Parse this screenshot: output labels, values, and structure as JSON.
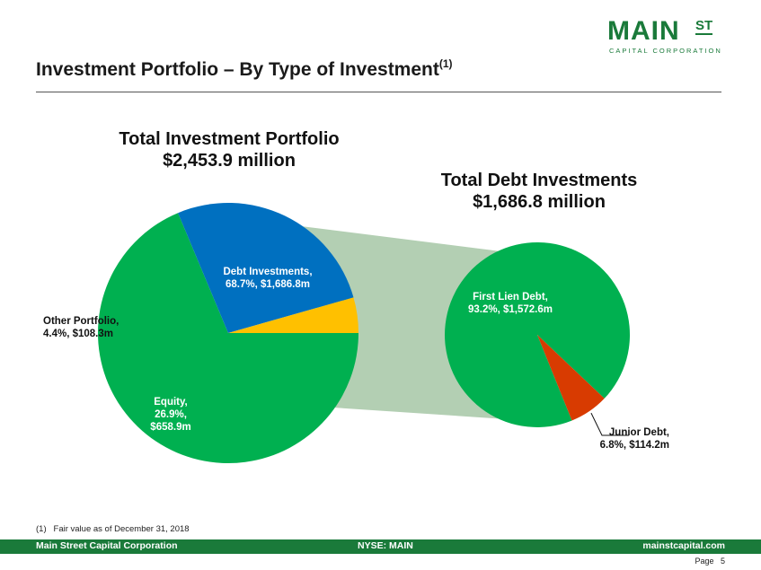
{
  "logo": {
    "main": "MAIN",
    "st": "ST",
    "sub": "CAPITAL CORPORATION"
  },
  "title": {
    "text": "Investment Portfolio – By Type of Investment",
    "sup": "(1)"
  },
  "chart_data": [
    {
      "type": "pie",
      "title": "Total Investment Portfolio",
      "subtitle": "$2,453.9 million",
      "slices": [
        {
          "name": "Debt Investments",
          "percent": 68.7,
          "value": 1686.8,
          "label_line1": "Debt Investments,",
          "label_line2": "68.7%, $1,686.8m",
          "color": "#00b050"
        },
        {
          "name": "Equity",
          "percent": 26.9,
          "value": 658.9,
          "label_line1": "Equity,",
          "label_line2": "26.9%,",
          "label_line3": "$658.9m",
          "color": "#0070c0"
        },
        {
          "name": "Other Portfolio",
          "percent": 4.4,
          "value": 108.3,
          "label_line1": "Other Portfolio,",
          "label_line2": "4.4%, $108.3m",
          "color": "#ffc000"
        }
      ]
    },
    {
      "type": "pie",
      "title": "Total Debt Investments",
      "subtitle": "$1,686.8 million",
      "slices": [
        {
          "name": "First Lien Debt",
          "percent": 93.2,
          "value": 1572.6,
          "label_line1": "First Lien Debt,",
          "label_line2": "93.2%, $1,572.6m",
          "color": "#00b050"
        },
        {
          "name": "Junior Debt",
          "percent": 6.8,
          "value": 114.2,
          "label_line1": "Junior Debt,",
          "label_line2": "6.8%, $114.2m",
          "color": "#d83b01"
        }
      ]
    }
  ],
  "colors": {
    "connector": "#b3cfb3",
    "brand": "#1a7a3a"
  },
  "footnote": "(1)   Fair value as of December 31, 2018",
  "footer": {
    "left": "Main Street Capital Corporation",
    "center": "NYSE: MAIN",
    "right": "mainstcapital.com"
  },
  "page": {
    "label": "Page",
    "number": "5"
  }
}
